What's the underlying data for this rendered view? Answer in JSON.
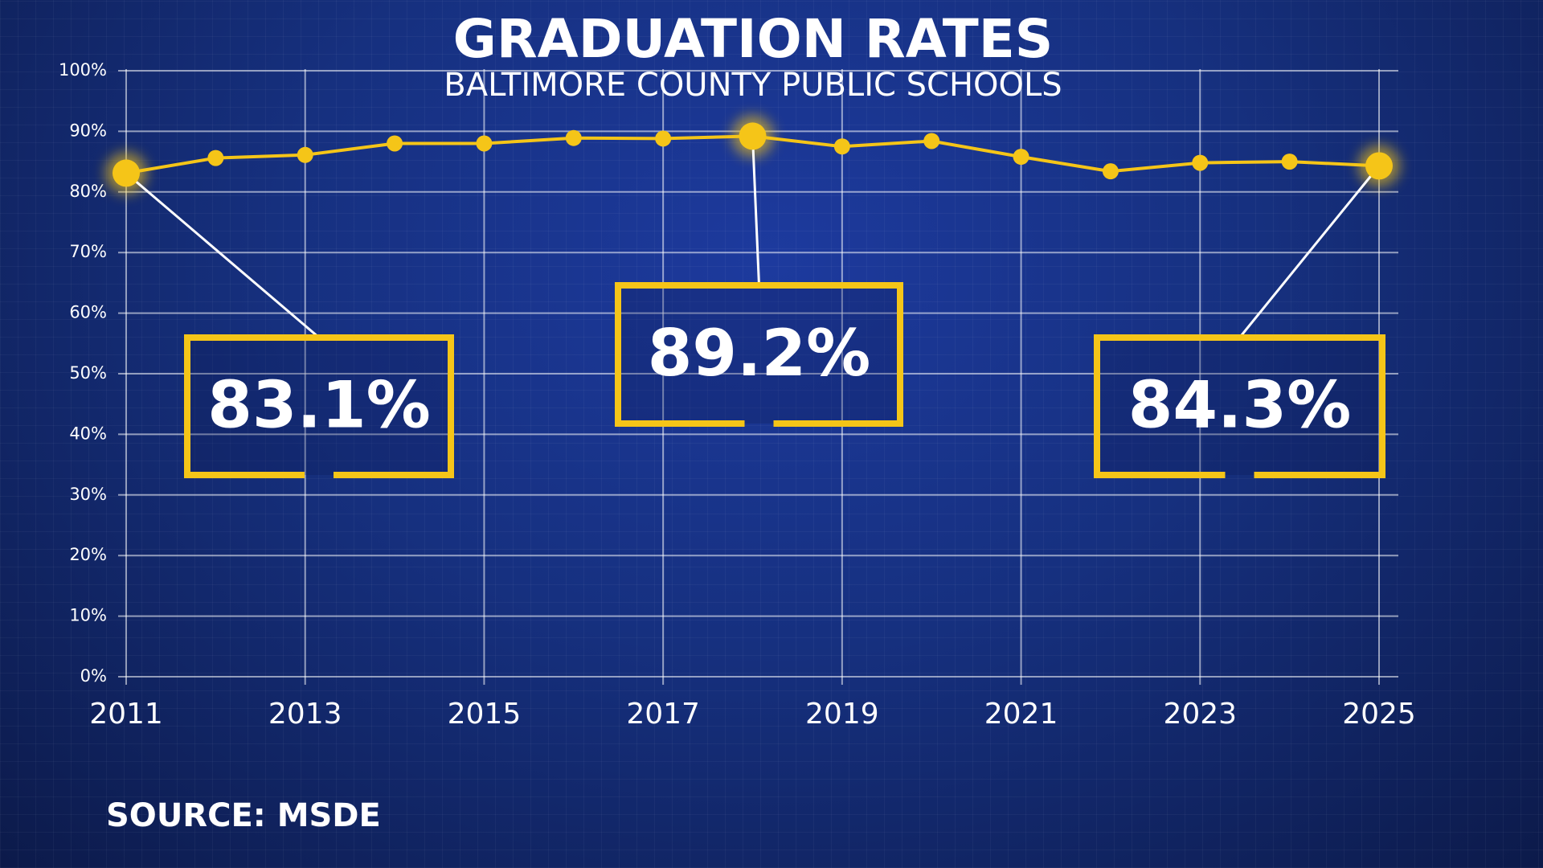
{
  "chart_data": {
    "type": "line",
    "title": "GRADUATION RATES",
    "subtitle": "BALTIMORE COUNTY PUBLIC SCHOOLS",
    "source": "SOURCE: MSDE",
    "x": [
      2011,
      2012,
      2013,
      2014,
      2015,
      2016,
      2017,
      2018,
      2019,
      2020,
      2021,
      2022,
      2023,
      2024,
      2025
    ],
    "values": [
      83.1,
      85.6,
      86.1,
      88.0,
      88.0,
      88.9,
      88.8,
      89.2,
      87.5,
      88.4,
      85.8,
      83.4,
      84.8,
      85.0,
      84.3
    ],
    "value_labels": [
      "83.1%",
      null,
      null,
      null,
      null,
      null,
      null,
      "89.2%",
      null,
      null,
      null,
      null,
      null,
      null,
      "84.3%"
    ],
    "color": "#f5c518",
    "xlim": [
      2011,
      2025
    ],
    "xticks": [
      2011,
      2013,
      2015,
      2017,
      2019,
      2021,
      2023,
      2025
    ],
    "ylim": [
      0,
      100
    ],
    "yticks": [
      {
        "value": 0,
        "label": "0%"
      },
      {
        "value": 10,
        "label": "10%"
      },
      {
        "value": 20,
        "label": "20%"
      },
      {
        "value": 30,
        "label": "30%"
      },
      {
        "value": 40,
        "label": "40%"
      },
      {
        "value": 50,
        "label": "50%"
      },
      {
        "value": 60,
        "label": "60%"
      },
      {
        "value": 70,
        "label": "70%"
      },
      {
        "value": 80,
        "label": "80%"
      },
      {
        "value": 90,
        "label": "90%"
      },
      {
        "value": 100,
        "label": "100%"
      }
    ],
    "grid": true
  }
}
